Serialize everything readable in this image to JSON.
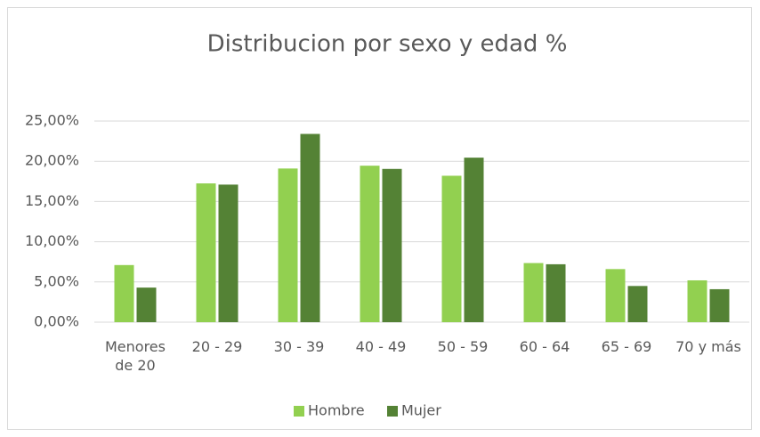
{
  "chart_data": {
    "type": "bar",
    "title": "Distribucion por sexo y edad %",
    "categories": [
      "Menores de 20",
      "20 - 29",
      "30 - 39",
      "40 - 49",
      "50 - 59",
      "60 - 64",
      "65 - 69",
      "70 y más"
    ],
    "series": [
      {
        "name": "Hombre",
        "color": "#92d050",
        "values": [
          7.1,
          17.25,
          19.1,
          19.45,
          18.2,
          7.35,
          6.6,
          5.2
        ]
      },
      {
        "name": "Mujer",
        "color": "#548235",
        "values": [
          4.3,
          17.1,
          23.4,
          19.05,
          20.45,
          7.2,
          4.5,
          4.1
        ]
      }
    ],
    "ylim": [
      0,
      25
    ],
    "yticks": [
      {
        "value": 0,
        "label": "0,00%"
      },
      {
        "value": 5,
        "label": "5,00%"
      },
      {
        "value": 10,
        "label": "10,00%"
      },
      {
        "value": 15,
        "label": "15,00%"
      },
      {
        "value": 20,
        "label": "20,00%"
      },
      {
        "value": 25,
        "label": "25,00%"
      }
    ],
    "grid": true,
    "legend": "bottom"
  }
}
